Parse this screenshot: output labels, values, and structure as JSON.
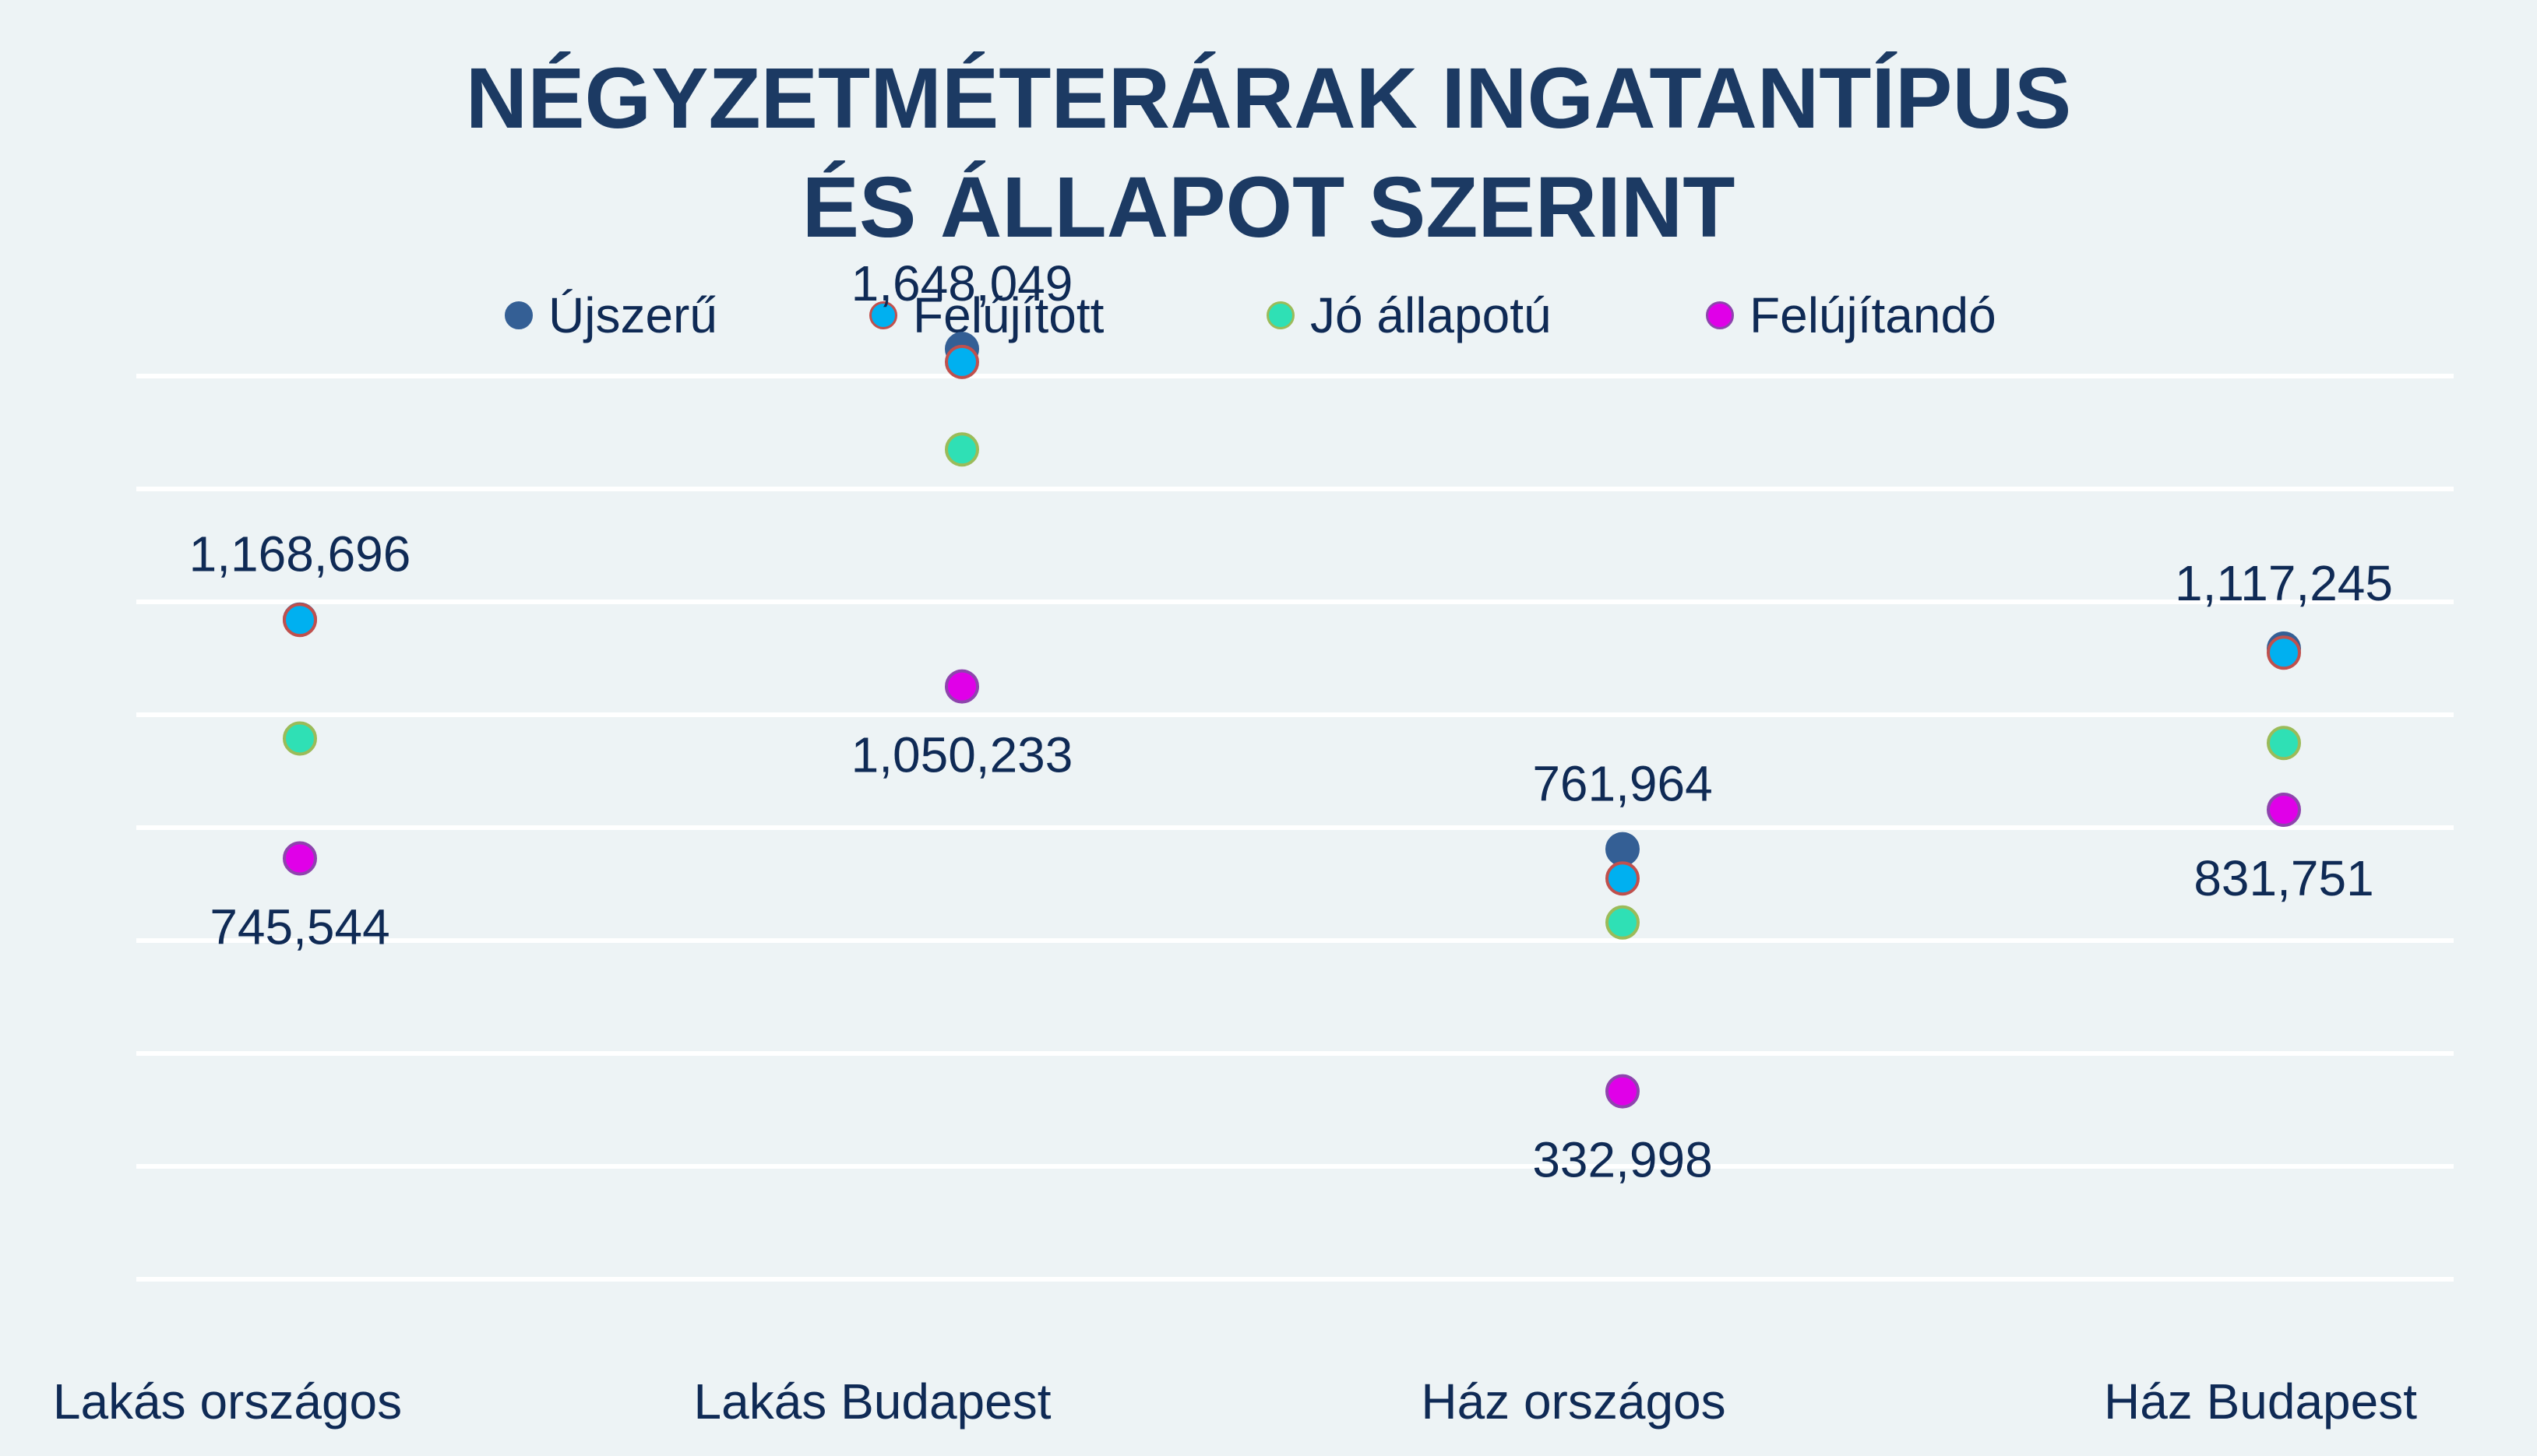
{
  "title_line1": "NÉGYZETMÉTERÁRAK INGATANTÍPUS",
  "title_line2": "ÉS ÁLLAPOT SZERINT",
  "legend": [
    {
      "label": "Újszerű",
      "color": "#345f95",
      "stroke": "#345f95"
    },
    {
      "label": "Felújított",
      "color": "#00b0f0",
      "stroke": "#c0504d"
    },
    {
      "label": "Jó állapotú",
      "color": "#2fe0b5",
      "stroke": "#9bbb59"
    },
    {
      "label": "Felújítandó",
      "color": "#e000e8",
      "stroke": "#8e44ad"
    }
  ],
  "chart_data": {
    "type": "scatter",
    "title": "NÉGYZETMÉTERÁRAK INGATANTÍPUS ÉS ÁLLAPOT SZERINT",
    "categories": [
      "Lakás országos",
      "Lakás Budapest",
      "Ház országos",
      "Ház Budapest"
    ],
    "series": [
      {
        "name": "Újszerű",
        "values": [
          1168696,
          1648049,
          761964,
          1117245
        ]
      },
      {
        "name": "Felújított",
        "values": [
          1168000,
          1625000,
          710000,
          1110000
        ]
      },
      {
        "name": "Jó állapotú",
        "values": [
          958000,
          1470000,
          632000,
          950000
        ]
      },
      {
        "name": "Felújítandó",
        "values": [
          745544,
          1050233,
          332998,
          831751
        ]
      }
    ],
    "data_labels": [
      {
        "category": 0,
        "text": "1,168,696",
        "value": 1168696,
        "position": "above"
      },
      {
        "category": 0,
        "text": "745,544",
        "value": 745544,
        "position": "below"
      },
      {
        "category": 1,
        "text": "1,648,049",
        "value": 1648049,
        "position": "above"
      },
      {
        "category": 1,
        "text": "1,050,233",
        "value": 1050233,
        "position": "below"
      },
      {
        "category": 2,
        "text": "761,964",
        "value": 761964,
        "position": "above"
      },
      {
        "category": 2,
        "text": "332,998",
        "value": 332998,
        "position": "below"
      },
      {
        "category": 3,
        "text": "1,117,245",
        "value": 1117245,
        "position": "above"
      },
      {
        "category": 3,
        "text": "831,751",
        "value": 831751,
        "position": "below"
      }
    ],
    "ylim": [
      0,
      1700000
    ],
    "gridlines": [
      0,
      200000,
      400000,
      600000,
      800000,
      1000000,
      1200000,
      1400000,
      1600000
    ],
    "grid": true,
    "y_axis_labels_visible": false,
    "legend_position": "top"
  }
}
